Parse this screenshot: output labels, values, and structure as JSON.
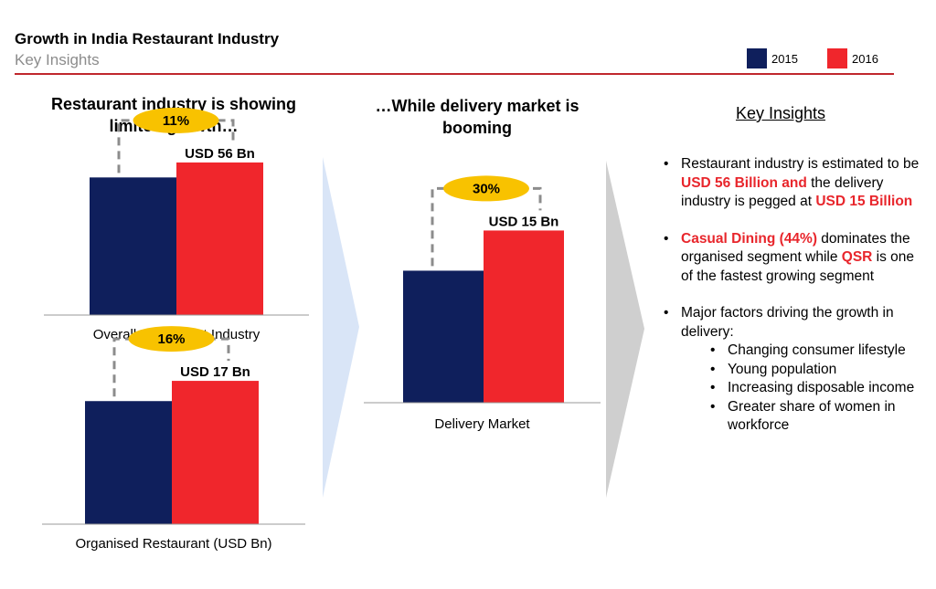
{
  "header": {
    "title": "Growth in India Restaurant Industry",
    "subtitle": "Key Insights"
  },
  "legend": [
    {
      "label": "2015",
      "color": "#0f1f5c"
    },
    {
      "label": "2016",
      "color": "#f0262c"
    }
  ],
  "headings": {
    "left": [
      "Restaurant industry is showing",
      "limited growth…"
    ],
    "middle": [
      "…While delivery market is",
      "booming"
    ],
    "insights": "Key Insights"
  },
  "chart_data": [
    {
      "type": "bar",
      "title": "",
      "categories": [
        "2015",
        "2016"
      ],
      "values": [
        50.5,
        56
      ],
      "value_labels": [
        "",
        "USD 56 Bn"
      ],
      "growth_label": "11%",
      "xlabel": "Overall Restaurant Industry",
      "ylim": [
        0,
        62
      ]
    },
    {
      "type": "bar",
      "title": "",
      "categories": [
        "2015",
        "2016"
      ],
      "values": [
        14.6,
        17
      ],
      "value_labels": [
        "",
        "USD 17 Bn"
      ],
      "growth_label": "16%",
      "xlabel": "Organised Restaurant  (USD Bn)",
      "ylim": [
        0,
        19.5
      ]
    },
    {
      "type": "bar",
      "title": "",
      "categories": [
        "2015",
        "2016"
      ],
      "values": [
        11.5,
        15
      ],
      "value_labels": [
        "",
        "USD 15 Bn"
      ],
      "growth_label": "30%",
      "xlabel": "Delivery Market",
      "ylim": [
        0,
        17.5
      ]
    }
  ],
  "insights": {
    "b1": {
      "t1": "Restaurant industry is estimated to be ",
      "h1": "USD 56 Billion and",
      "t2": " the delivery industry is pegged at ",
      "h2": "USD 15 Billion"
    },
    "b2": {
      "h1": "Casual Dining (44%)",
      "t1": " dominates the organised segment while ",
      "h2": "QSR",
      "t2": " is one of the fastest growing segment"
    },
    "b3": {
      "intro": "Major factors driving the growth in delivery:",
      "factors": [
        "Changing consumer lifestyle",
        "Young population",
        "Increasing disposable income",
        "Greater share of women in workforce"
      ]
    }
  }
}
